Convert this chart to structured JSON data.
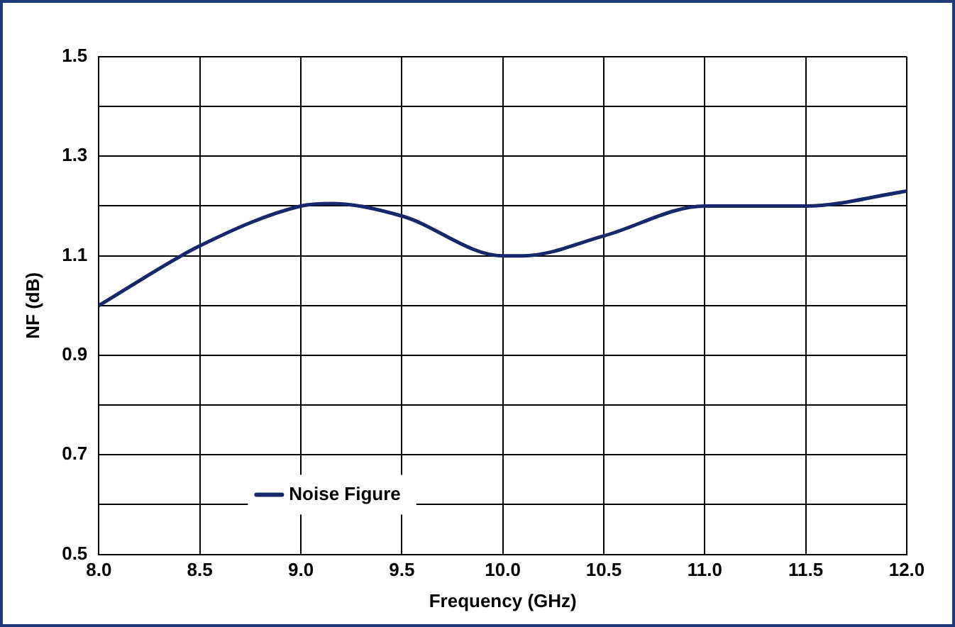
{
  "chart_data": {
    "type": "line",
    "xlabel": "Frequency (GHz)",
    "ylabel": "NF (dB)",
    "series": [
      {
        "name": "Noise Figure",
        "color": "#14286a",
        "x": [
          8.0,
          8.5,
          9.0,
          9.15,
          9.5,
          10.0,
          10.1,
          10.5,
          11.0,
          11.5,
          12.0
        ],
        "values": [
          1.0,
          1.12,
          1.2,
          1.205,
          1.18,
          1.1,
          1.1,
          1.14,
          1.2,
          1.2,
          1.23
        ]
      }
    ],
    "xlim": [
      8.0,
      12.0
    ],
    "xticks": [
      {
        "value": 8.0,
        "label": "8.0"
      },
      {
        "value": 8.5,
        "label": "8.5"
      },
      {
        "value": 9.0,
        "label": "9.0"
      },
      {
        "value": 9.5,
        "label": "9.5"
      },
      {
        "value": 10.0,
        "label": "10.0"
      },
      {
        "value": 10.5,
        "label": "10.5"
      },
      {
        "value": 11.0,
        "label": "11.0"
      },
      {
        "value": 11.5,
        "label": "11.5"
      },
      {
        "value": 12.0,
        "label": "12.0"
      }
    ],
    "ylim": [
      0.5,
      1.5
    ],
    "yticks": [
      0.5,
      {
        "value": 0.6,
        "label": null
      },
      0.7,
      {
        "value": 0.8,
        "label": null
      },
      0.9,
      {
        "value": 1.0,
        "label": null
      },
      1.1,
      {
        "value": 1.2,
        "label": null
      },
      1.3,
      {
        "value": 1.4,
        "label": null
      },
      1.5
    ],
    "grid": true,
    "legend": "bottom left",
    "marker": "none",
    "line_style": "solid"
  }
}
